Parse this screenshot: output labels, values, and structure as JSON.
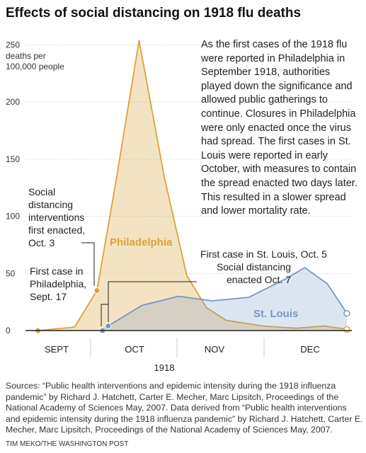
{
  "chart_data": {
    "type": "area",
    "title": "Effects of social distancing on 1918 flu deaths",
    "ylabel": "deaths per 100,000 people",
    "body_text": "As the first cases of the 1918 flu were reported in Philadelphia in September 1918, authorities played down the significance and allowed public gatherings to continue. Closures in Philadelphia were only enacted once the virus had spread. The first cases in St. Louis were reported in early October, with measures to contain the spread enacted two days later. This resulted in a slower spread and lower mortality rate.",
    "categories": [
      "SEPT",
      "OCT",
      "NOV",
      "DEC"
    ],
    "xlabel": "1918",
    "xlim": [
      0,
      122
    ],
    "ylim": [
      0,
      262
    ],
    "yticks": [
      0,
      50,
      100,
      150,
      200,
      250
    ],
    "grid": true,
    "series": [
      {
        "name": "Philadelphia",
        "color": "#dba238",
        "x": [
          11,
          24,
          32,
          39,
          47,
          56,
          64,
          71,
          78,
          91,
          103,
          113,
          121
        ],
        "values": [
          0,
          3,
          35,
          134,
          254,
          134,
          48,
          20,
          9,
          4,
          2,
          4,
          1
        ]
      },
      {
        "name": "St. Louis",
        "color": "#7898c4",
        "x": [
          34,
          36,
          48,
          61,
          73,
          86,
          99,
          106,
          114,
          121
        ],
        "values": [
          0,
          4,
          22,
          30,
          26,
          29,
          45,
          55,
          41,
          15
        ]
      }
    ],
    "annotations": [
      "Social distancing interventions first enacted, Oct. 3",
      "First case in Philadelphia, Sept. 17",
      "First case in St. Louis, Oct. 5",
      "Social distancing enacted Oct. 7"
    ],
    "sources": "Sources: “Public health interventions and epidemic intensity during the 1918 influenza pandemic” by Richard J. Hatchett, Carter E. Mecher, Marc Lipsitch, Proceedings of the National Academy of Sciences May, 2007. Data derived from “Public health interventions and epidemic intensity during the 1918 influenza pandemic” by Richard J. Hatchett, Carter E. Mecher, Marc Lipsitch, Proceedings of the National Academy of Sciences May, 2007.",
    "credit": "TIM MEKO/THE WASHINGTON POST"
  }
}
